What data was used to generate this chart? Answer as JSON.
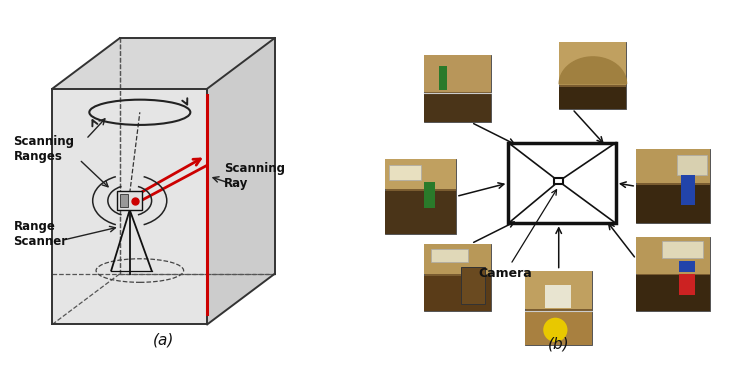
{
  "fig_width": 7.51,
  "fig_height": 3.66,
  "dpi": 100,
  "bg_color": "#ffffff",
  "label_a": "(a)",
  "label_b": "(b)",
  "scanning_ranges_text": "Scanning\nRanges",
  "range_scanner_text": "Range\nScanner",
  "scanning_ray_text": "Scanning\nRay",
  "camera_text": "Camera",
  "red_line_color": "#cc0000"
}
